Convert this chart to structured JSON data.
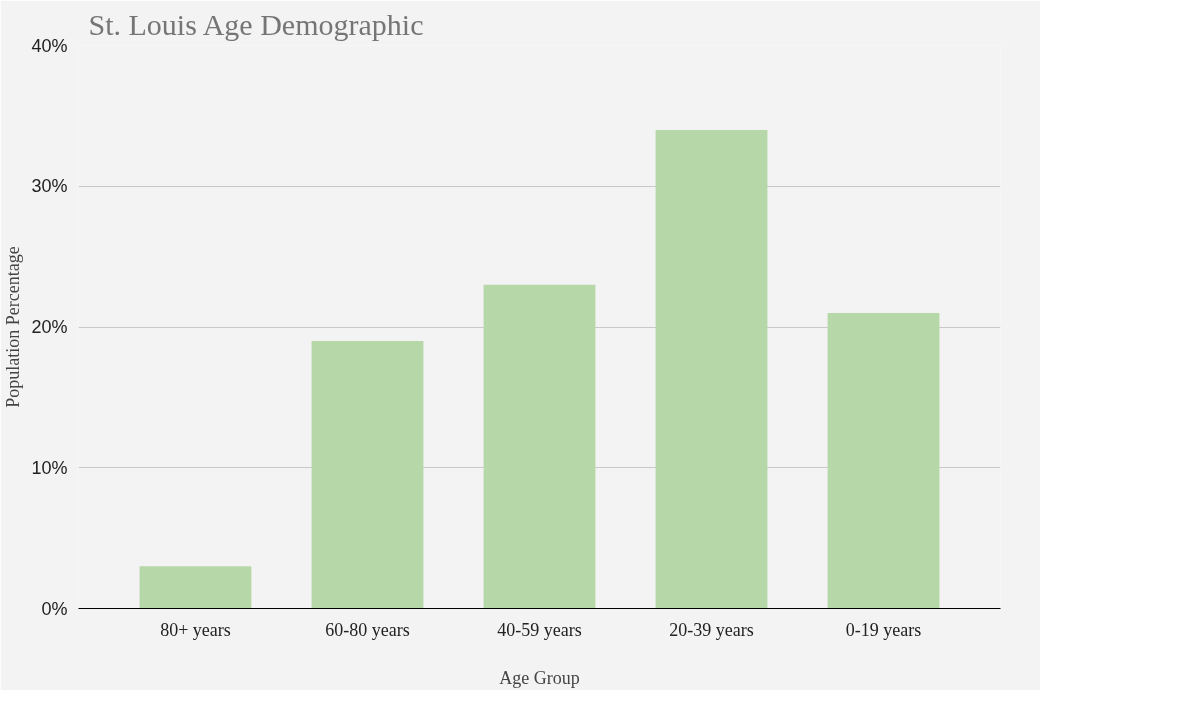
{
  "chart_data": {
    "type": "bar",
    "title": "St. Louis Age Demographic",
    "xlabel": "Age Group",
    "ylabel": "Population Percentage",
    "categories": [
      "80+ years",
      "60-80 years",
      "40-59 years",
      "20-39 years",
      "0-19 years"
    ],
    "values": [
      3,
      19,
      23,
      34,
      21
    ],
    "color": "#b6d7a8",
    "ylim": [
      0,
      40
    ],
    "yticks": [
      {
        "value": 0,
        "label": "0%"
      },
      {
        "value": 10,
        "label": "10%"
      },
      {
        "value": 20,
        "label": "20%"
      },
      {
        "value": 30,
        "label": "30%"
      },
      {
        "value": 40,
        "label": "40%"
      }
    ],
    "grid": "y"
  }
}
